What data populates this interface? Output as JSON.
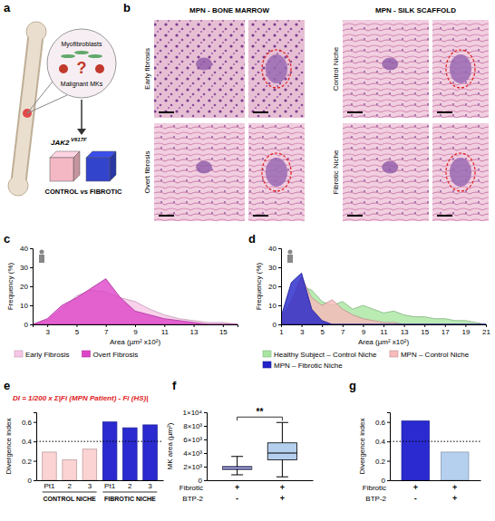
{
  "panel_a": {
    "label": "a",
    "cells": "Myofibroblasts",
    "question": "?",
    "target": "Malignant MKs",
    "gene": "JAK2",
    "mutation": "V617F",
    "comparison": "CONTROL vs FIBROTIC"
  },
  "panel_b": {
    "label": "b",
    "groups": [
      {
        "title": "MPN - BONE MARROW",
        "rows": [
          "Early fibrosis",
          "Overt fibrosis"
        ]
      },
      {
        "title": "MPN - SILK SCAFFOLD",
        "rows": [
          "Control Niche",
          "Fibrotic Niche"
        ]
      }
    ]
  },
  "chart_data": [
    {
      "label": "c",
      "type": "area",
      "x": [
        2,
        3,
        4,
        5,
        6,
        7,
        8,
        9,
        10,
        11,
        12,
        13,
        14,
        15,
        16
      ],
      "series": [
        {
          "name": "Early Fibrosis",
          "color": "#f6c6e6",
          "values": [
            0,
            2,
            8,
            15,
            18,
            17,
            14,
            12,
            8,
            5,
            3,
            2,
            1,
            1,
            0
          ]
        },
        {
          "name": "Overt Fibrosis",
          "color": "#dd44c8",
          "values": [
            0,
            3,
            10,
            14,
            19,
            24,
            14,
            7,
            5,
            3,
            2,
            1,
            0,
            0,
            0
          ]
        }
      ],
      "xlim": [
        2,
        16
      ],
      "xticks": [
        3,
        5,
        7,
        9,
        11,
        13,
        15
      ],
      "ylim": [
        0,
        40
      ],
      "yticks": [
        0,
        10,
        20,
        30,
        40
      ],
      "x_label": "Area (µm² x10²)",
      "y_label": "Frequency (%)",
      "legend": "bottom"
    },
    {
      "label": "d",
      "type": "area",
      "x": [
        1,
        2,
        3,
        4,
        5,
        6,
        7,
        8,
        9,
        10,
        11,
        12,
        13,
        14,
        15,
        16,
        17,
        18,
        19,
        20,
        21
      ],
      "series": [
        {
          "name": "Healthy Subject – Control Niche",
          "color": "#a8e6a0",
          "values": [
            2,
            10,
            20,
            18,
            12,
            10,
            12,
            8,
            10,
            8,
            6,
            7,
            5,
            4,
            4,
            3,
            3,
            2,
            2,
            1,
            0
          ]
        },
        {
          "name": "MPN – Control Niche",
          "color": "#f7b9b9",
          "values": [
            3,
            12,
            25,
            14,
            10,
            13,
            8,
            5,
            3,
            2,
            1,
            1,
            0,
            0,
            0,
            0,
            0,
            0,
            0,
            0,
            0
          ]
        },
        {
          "name": "MPN – Fibrotic Niche",
          "color": "#2323c8",
          "values": [
            4,
            22,
            27,
            8,
            2,
            0,
            0,
            0,
            0,
            0,
            0,
            0,
            0,
            0,
            0,
            0,
            0,
            0,
            0,
            0,
            0
          ]
        }
      ],
      "xlim": [
        1,
        21
      ],
      "xticks": [
        1,
        3,
        5,
        7,
        9,
        11,
        13,
        15,
        17,
        19,
        21
      ],
      "ylim": [
        0,
        40
      ],
      "yticks": [
        0,
        10,
        20,
        30,
        40
      ],
      "x_label": "Area (µm² x10²)",
      "y_label": "Frequency (%)",
      "legend": "bottom"
    },
    {
      "label": "e",
      "type": "bar",
      "categories": [
        "Pt1",
        "2",
        "3",
        "Pt1",
        "2",
        "3"
      ],
      "category_groups": [
        "CONTROL NICHE",
        "CONTROL NICHE",
        "CONTROL NICHE",
        "FIBROTIC NICHE",
        "FIBROTIC NICHE",
        "FIBROTIC NICHE"
      ],
      "values": [
        0.29,
        0.21,
        0.32,
        0.6,
        0.54,
        0.57
      ],
      "colors": [
        "#fcd3d3",
        "#fcd3d3",
        "#fcd3d3",
        "#2a2ad0",
        "#2a2ad0",
        "#2a2ad0"
      ],
      "ylim": [
        0,
        0.7
      ],
      "yticks": [
        0,
        0.2,
        0.4,
        0.6
      ],
      "y_label": "Divergence index",
      "reference_line": 0.4,
      "annotation": "DI = 1/200 x Σ|Fi (MPN Patient) - Fi (HS)|"
    },
    {
      "label": "f",
      "type": "box",
      "boxes": [
        {
          "min": 800,
          "q1": 1600,
          "median": 1800,
          "q3": 2000,
          "max": 3500,
          "color": "#2a2ad0"
        },
        {
          "min": 500,
          "q1": 3000,
          "median": 4000,
          "q3": 5500,
          "max": 8500,
          "color": "#b5d0ee"
        }
      ],
      "row_labels": [
        "Fibrotic",
        "BTP-2"
      ],
      "conditions": [
        [
          "+",
          "-"
        ],
        [
          "+",
          "+"
        ]
      ],
      "ylim": [
        0,
        10000
      ],
      "yticks": [
        0,
        {
          "value": 2000,
          "label": "2×10³"
        },
        {
          "value": 4000,
          "label": "4×10³"
        },
        {
          "value": 6000,
          "label": "6×10³"
        },
        {
          "value": 8000,
          "label": "8×10³"
        },
        {
          "value": 10000,
          "label": "1×10⁴"
        }
      ],
      "y_label": "MK area (µm²)",
      "significance": "**"
    },
    {
      "label": "g",
      "type": "bar",
      "values": [
        0.61,
        0.29
      ],
      "colors": [
        "#2a2ad0",
        "#b5d0ee"
      ],
      "row_labels": [
        "Fibrotic",
        "BTP-2"
      ],
      "conditions": [
        [
          "+",
          "-"
        ],
        [
          "+",
          "+"
        ]
      ],
      "ylim": [
        0,
        0.7
      ],
      "yticks": [
        0,
        0.2,
        0.4,
        0.6
      ],
      "y_label": "Divergence index",
      "reference_line": 0.4
    }
  ]
}
